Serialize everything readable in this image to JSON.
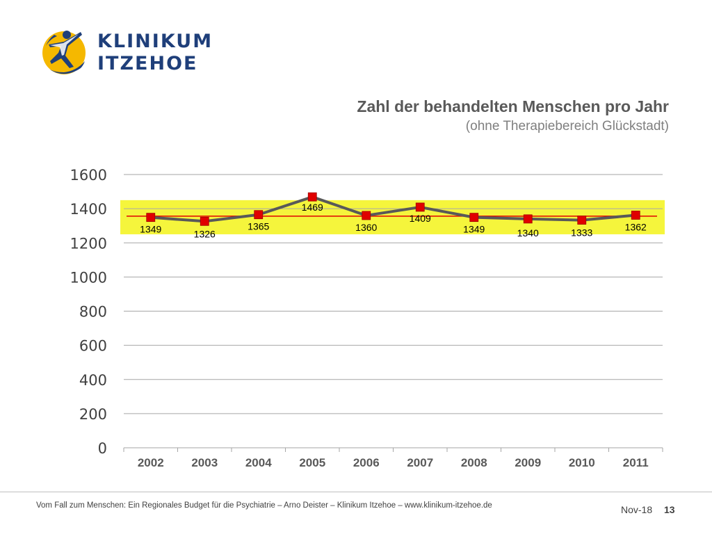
{
  "logo": {
    "line1": "KLINIKUM",
    "line2": "ITZEHOE",
    "icon": "running-person-icon",
    "colors": {
      "navy": "#1f3f7a",
      "yellow": "#f5b800"
    }
  },
  "chart_data": {
    "type": "line",
    "title": "Zahl der behandelten Menschen pro Jahr",
    "subtitle": "(ohne Therapiebereich Glückstadt)",
    "categories": [
      "2002",
      "2003",
      "2004",
      "2005",
      "2006",
      "2007",
      "2008",
      "2009",
      "2010",
      "2011"
    ],
    "series": [
      {
        "values": [
          1349,
          1326,
          1365,
          1469,
          1360,
          1409,
          1349,
          1340,
          1333,
          1362
        ],
        "color": "#595959",
        "marker_color": "#e00000"
      }
    ],
    "data_labels": [
      "1349",
      "1326",
      "1365",
      "1469",
      "1360",
      "1409",
      "1349",
      "1340",
      "1333",
      "1362"
    ],
    "y_ticks": [
      "0",
      "200",
      "400",
      "600",
      "800",
      "1000",
      "1200",
      "1400",
      "1600"
    ],
    "ylim": [
      0,
      1600
    ],
    "reference_line": {
      "value": 1356,
      "color": "#e00000"
    },
    "highlight_band": {
      "from": 1250,
      "to": 1450,
      "color": "#f5f53c"
    },
    "grid": true,
    "gridline_color": "#a6a6a6"
  },
  "footer": {
    "text": "Vom Fall zum Menschen: Ein Regionales Budget für die Psychiatrie  – Arno Deister – Klinikum Itzehoe – www.klinikum-itzehoe.de",
    "date": "Nov-18",
    "page": "13"
  }
}
